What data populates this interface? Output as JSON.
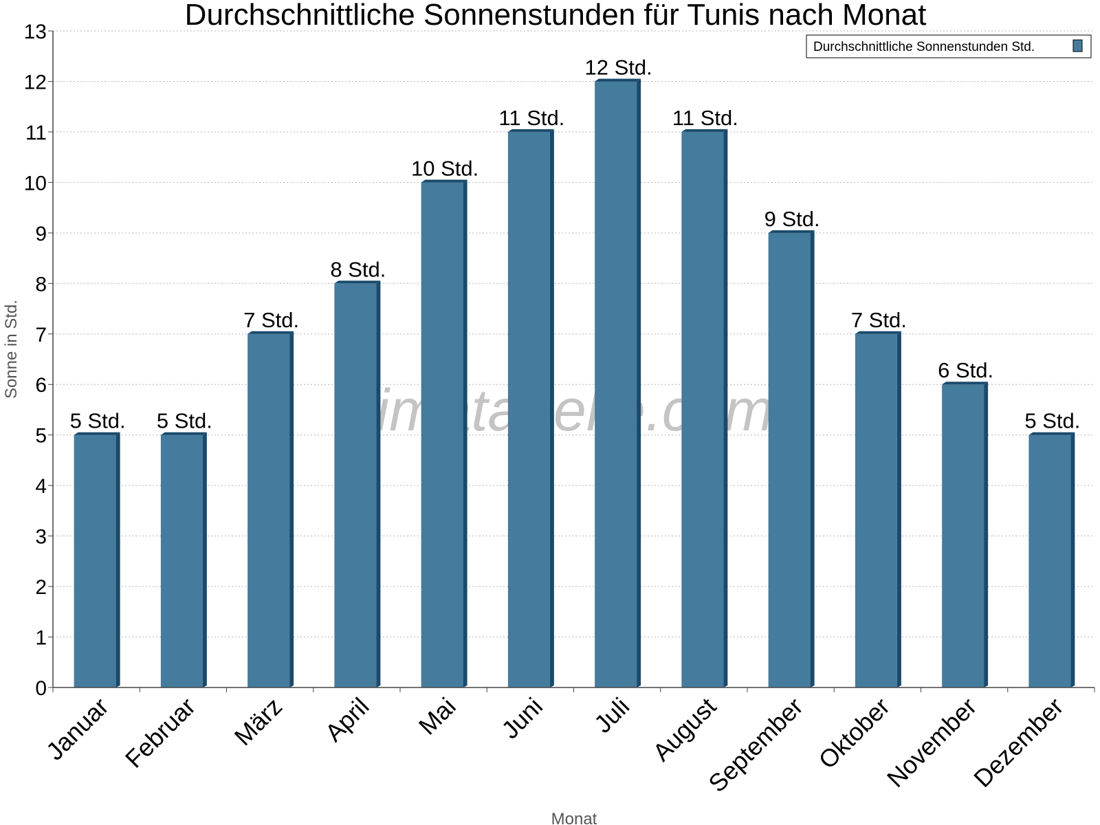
{
  "chart_data": {
    "type": "bar",
    "title": "Durchschnittliche Sonnenstunden für Tunis nach Monat",
    "xlabel": "Monat",
    "ylabel": "Sonne in Std.",
    "categories": [
      "Januar",
      "Februar",
      "März",
      "April",
      "Mai",
      "Juni",
      "Juli",
      "August",
      "September",
      "Oktober",
      "November",
      "Dezember"
    ],
    "series": [
      {
        "name": "Durchschnittliche Sonnenstunden Std.",
        "values": [
          5,
          5,
          7,
          8,
          10,
          11,
          12,
          11,
          9,
          7,
          6,
          5
        ],
        "labels": [
          "5 Std.",
          "5 Std.",
          "7 Std.",
          "8 Std.",
          "10 Std.",
          "11 Std.",
          "12 Std.",
          "11 Std.",
          "9 Std.",
          "7 Std.",
          "6 Std.",
          "5 Std."
        ],
        "color": "#457b9d",
        "edge_color": "#1a4a6b"
      }
    ],
    "ylim": [
      0,
      13
    ],
    "yticks": [
      0,
      1,
      2,
      3,
      4,
      5,
      6,
      7,
      8,
      9,
      10,
      11,
      12,
      13
    ],
    "grid": true,
    "legend_position": "top-right",
    "watermark": "klimatabelle.com"
  }
}
